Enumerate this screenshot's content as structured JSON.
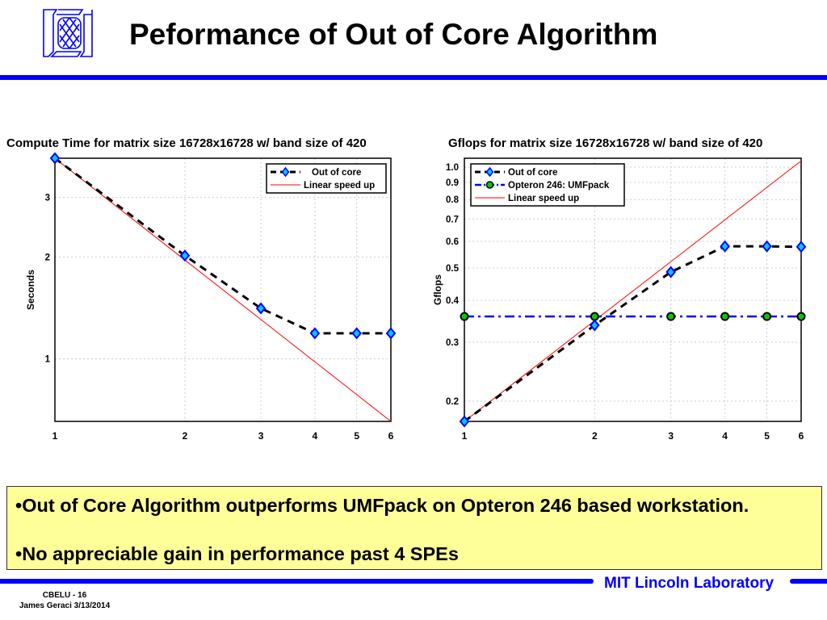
{
  "header": {
    "title": "Peformance of Out of Core Algorithm",
    "logo_icon": "mit-ll-logo-icon"
  },
  "colors": {
    "brand_blue": "#0000ff",
    "callout_bg": "#ffff99"
  },
  "chart_data": [
    {
      "type": "line",
      "title": "Compute Time for matrix size 16728x16728 w/ band size of 420",
      "xlabel": "",
      "ylabel": "Seconds",
      "xscale": "log",
      "yscale": "log",
      "x": [
        1,
        2,
        3,
        4,
        5,
        6
      ],
      "xticks": [
        "1",
        "2",
        "3",
        "4",
        "5",
        "6"
      ],
      "yticks": [
        1,
        2,
        3
      ],
      "ytick_labels": [
        "1",
        "2",
        "3"
      ],
      "xlim": [
        1,
        6
      ],
      "ylim": [
        0.653,
        3.92
      ],
      "grid": true,
      "legend_position": "top-right",
      "series": [
        {
          "name": "Out of core",
          "values": [
            3.92,
            2.02,
            1.41,
            1.19,
            1.19,
            1.19
          ],
          "color": "#000000",
          "style": "dashed",
          "marker": "diamond"
        },
        {
          "name": "Linear speed up",
          "values": [
            3.92,
            1.96,
            1.307,
            0.98,
            0.784,
            0.653
          ],
          "color": "#ff0000",
          "style": "solid",
          "marker": "none"
        }
      ]
    },
    {
      "type": "line",
      "title": "Gflops for matrix size 16728x16728 w/ band size of 420",
      "xlabel": "",
      "ylabel": "Gflops",
      "xscale": "log",
      "yscale": "log",
      "x": [
        1,
        2,
        3,
        4,
        5,
        6
      ],
      "xticks": [
        "1",
        "2",
        "3",
        "4",
        "5",
        "6"
      ],
      "yticks": [
        0.2,
        0.3,
        0.4,
        0.5,
        0.6,
        0.7,
        0.8,
        0.9,
        1.0
      ],
      "ytick_labels": [
        "0.2",
        "0.3",
        "0.4",
        "0.5",
        "0.6",
        "0.7",
        "0.8",
        "0.9",
        "1.0"
      ],
      "xlim": [
        1,
        6
      ],
      "ylim": [
        0.174,
        1.063
      ],
      "grid": true,
      "legend_position": "top-left",
      "series": [
        {
          "name": "Out of core",
          "values": [
            0.174,
            0.337,
            0.486,
            0.58,
            0.58,
            0.578
          ],
          "color": "#000000",
          "style": "dashed",
          "marker": "diamond"
        },
        {
          "name": "Opteron 246: UMFpack",
          "values": [
            0.358,
            0.358,
            0.358,
            0.358,
            0.358,
            0.358
          ],
          "color": "#0000ff",
          "style": "dashdot",
          "marker": "circle"
        },
        {
          "name": "Linear speed up",
          "values": [
            0.174,
            0.348,
            0.522,
            0.696,
            0.87,
            1.044
          ],
          "color": "#ff0000",
          "style": "solid",
          "marker": "none"
        }
      ]
    }
  ],
  "bullets": [
    "•Out of Core Algorithm outperforms UMFpack on Opteron 246 based workstation.",
    "•No appreciable gain in performance past 4 SPEs"
  ],
  "footer": {
    "lab": "MIT Lincoln Laboratory",
    "slide_id": "CBELU - 16",
    "author_date": "James Geraci 3/13/2014"
  }
}
